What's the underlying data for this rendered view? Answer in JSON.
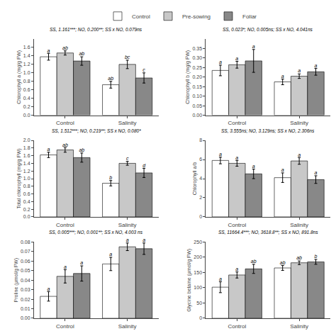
{
  "chart_data": [
    {
      "type": "bar",
      "subtitle": "SS, 1.161***; NO, 0.200**; SS x NO, 0.079ns",
      "ylabel": "Chlorophyll a (mg/g FW)",
      "categories": [
        "Control",
        "Salinity"
      ],
      "series": [
        {
          "name": "Control",
          "color": "white",
          "values": [
            1.38,
            0.72
          ],
          "errors": [
            0.08,
            0.08
          ],
          "labels": [
            "a",
            "ab"
          ]
        },
        {
          "name": "Pre-sowing",
          "color": "#c8c8c8",
          "values": [
            1.47,
            1.2
          ],
          "errors": [
            0.05,
            0.1
          ],
          "labels": [
            "ab",
            "bc"
          ]
        },
        {
          "name": "Foliar",
          "color": "#888888",
          "values": [
            1.28,
            0.88
          ],
          "errors": [
            0.1,
            0.12
          ],
          "labels": [
            "ab",
            "c"
          ]
        }
      ],
      "ylim": [
        0,
        1.8
      ],
      "yticks": [
        {
          "value": 0,
          "label": "0.0"
        },
        0.2,
        0.4,
        0.6,
        0.8,
        {
          "value": 1.0,
          "label": "1.0"
        },
        1.2,
        1.4,
        1.6
      ],
      "grid": false,
      "legend": "top"
    },
    {
      "type": "bar",
      "subtitle": "SS, 0.023*; NO, 0.005ns; SS x NO, 4.041ns",
      "ylabel": "Chlorophyll b (mg/g FW)",
      "categories": [
        "Control",
        "Salinity"
      ],
      "series": [
        {
          "name": "Control",
          "color": "white",
          "values": [
            0.235,
            0.175
          ],
          "errors": [
            0.028,
            0.015
          ],
          "labels": [
            "a",
            "a"
          ]
        },
        {
          "name": "Pre-sowing",
          "color": "#c8c8c8",
          "values": [
            0.265,
            0.205
          ],
          "errors": [
            0.018,
            0.012
          ],
          "labels": [
            "a",
            "a"
          ]
        },
        {
          "name": "Foliar",
          "color": "#888888",
          "values": [
            0.285,
            0.228
          ],
          "errors": [
            0.06,
            0.018
          ],
          "labels": [
            "a",
            "a"
          ]
        }
      ],
      "ylim": [
        0,
        0.4
      ],
      "yticks": [
        {
          "value": 0,
          "label": "0.00"
        },
        0.05,
        {
          "value": 0.1,
          "label": "0.10"
        },
        0.15,
        {
          "value": 0.2,
          "label": "0.20"
        },
        0.25,
        {
          "value": 0.3,
          "label": "0.30"
        },
        0.35
      ],
      "grid": false,
      "legend": "top"
    },
    {
      "type": "bar",
      "subtitle": "SS, 1.512***; NO, 0.219**; SS x NO, 0.080*",
      "ylabel": "Total chlorophyll (mg/g FW)",
      "categories": [
        "Control",
        "Salinity"
      ],
      "series": [
        {
          "name": "Control",
          "color": "white",
          "values": [
            1.62,
            0.88
          ],
          "errors": [
            0.07,
            0.07
          ],
          "labels": [
            "a",
            "b"
          ]
        },
        {
          "name": "Pre-sowing",
          "color": "#c8c8c8",
          "values": [
            1.75,
            1.4
          ],
          "errors": [
            0.06,
            0.05
          ],
          "labels": [
            "ab",
            "c"
          ]
        },
        {
          "name": "Foliar",
          "color": "#888888",
          "values": [
            1.55,
            1.15
          ],
          "errors": [
            0.12,
            0.12
          ],
          "labels": [
            "ab",
            "d"
          ]
        }
      ],
      "ylim": [
        0,
        2.0
      ],
      "yticks": [
        {
          "value": 0,
          "label": "0.0"
        },
        0.2,
        0.4,
        0.6,
        0.8,
        {
          "value": 1.0,
          "label": "1.0"
        },
        1.2,
        1.4,
        1.6,
        1.8,
        {
          "value": 2.0,
          "label": "2.0"
        }
      ],
      "grid": false,
      "legend": "top"
    },
    {
      "type": "bar",
      "subtitle": "SS, 3.555ns; NO, 3.129ns; SS x NO, 2.306ns",
      "ylabel": "Chlorophyll a/b",
      "categories": [
        "Control",
        "Salinity"
      ],
      "series": [
        {
          "name": "Control",
          "color": "white",
          "values": [
            5.9,
            4.1
          ],
          "errors": [
            0.35,
            0.5
          ],
          "labels": [
            "a",
            "a"
          ]
        },
        {
          "name": "Pre-sowing",
          "color": "#c8c8c8",
          "values": [
            5.6,
            5.85
          ],
          "errors": [
            0.3,
            0.35
          ],
          "labels": [
            "a",
            "a"
          ]
        },
        {
          "name": "Foliar",
          "color": "#888888",
          "values": [
            4.5,
            3.9
          ],
          "errors": [
            0.5,
            0.4
          ],
          "labels": [
            "a",
            "a"
          ]
        }
      ],
      "ylim": [
        0,
        8
      ],
      "yticks": [
        0,
        2,
        4,
        6,
        8
      ],
      "grid": false,
      "legend": "top"
    },
    {
      "type": "bar",
      "subtitle": "SS, 0.005***; NO, 0.001**; SS x NO, 4.003 ns",
      "ylabel": "Proline (μmol/g FW)",
      "categories": [
        "Control",
        "Salinity"
      ],
      "series": [
        {
          "name": "Control",
          "color": "white",
          "values": [
            0.023,
            0.057
          ],
          "errors": [
            0.005,
            0.007
          ],
          "labels": [
            "a",
            "a"
          ]
        },
        {
          "name": "Pre-sowing",
          "color": "#c8c8c8",
          "values": [
            0.044,
            0.075
          ],
          "errors": [
            0.007,
            0.004
          ],
          "labels": [
            "a",
            "a"
          ]
        },
        {
          "name": "Foliar",
          "color": "#888888",
          "values": [
            0.047,
            0.073
          ],
          "errors": [
            0.008,
            0.006
          ],
          "labels": [
            "a",
            "a"
          ]
        }
      ],
      "ylim": [
        0,
        0.08
      ],
      "yticks": [
        {
          "value": 0,
          "label": "0.00"
        },
        0.01,
        0.02,
        0.03,
        0.04,
        0.05,
        0.06,
        0.07,
        0.08
      ],
      "grid": false,
      "legend": "top"
    },
    {
      "type": "bar",
      "subtitle": "SS, 11664.4***; NO, 3618.8**; SS x NO, 891.8ns",
      "ylabel": "Glycine betaine (μmol/g FW)",
      "categories": [
        "Control",
        "Salinity"
      ],
      "series": [
        {
          "name": "Control",
          "color": "white",
          "values": [
            102,
            165
          ],
          "errors": [
            18,
            8
          ],
          "labels": [
            "a",
            "ab"
          ]
        },
        {
          "name": "Pre-sowing",
          "color": "#c8c8c8",
          "values": [
            142,
            182
          ],
          "errors": [
            10,
            6
          ],
          "labels": [
            "a",
            "ab"
          ]
        },
        {
          "name": "Foliar",
          "color": "#888888",
          "values": [
            162,
            185
          ],
          "errors": [
            15,
            8
          ],
          "labels": [
            "ab",
            "b"
          ]
        }
      ],
      "ylim": [
        0,
        250
      ],
      "yticks": [
        0,
        50,
        100,
        150,
        200,
        250
      ],
      "grid": false,
      "legend": "top"
    }
  ]
}
